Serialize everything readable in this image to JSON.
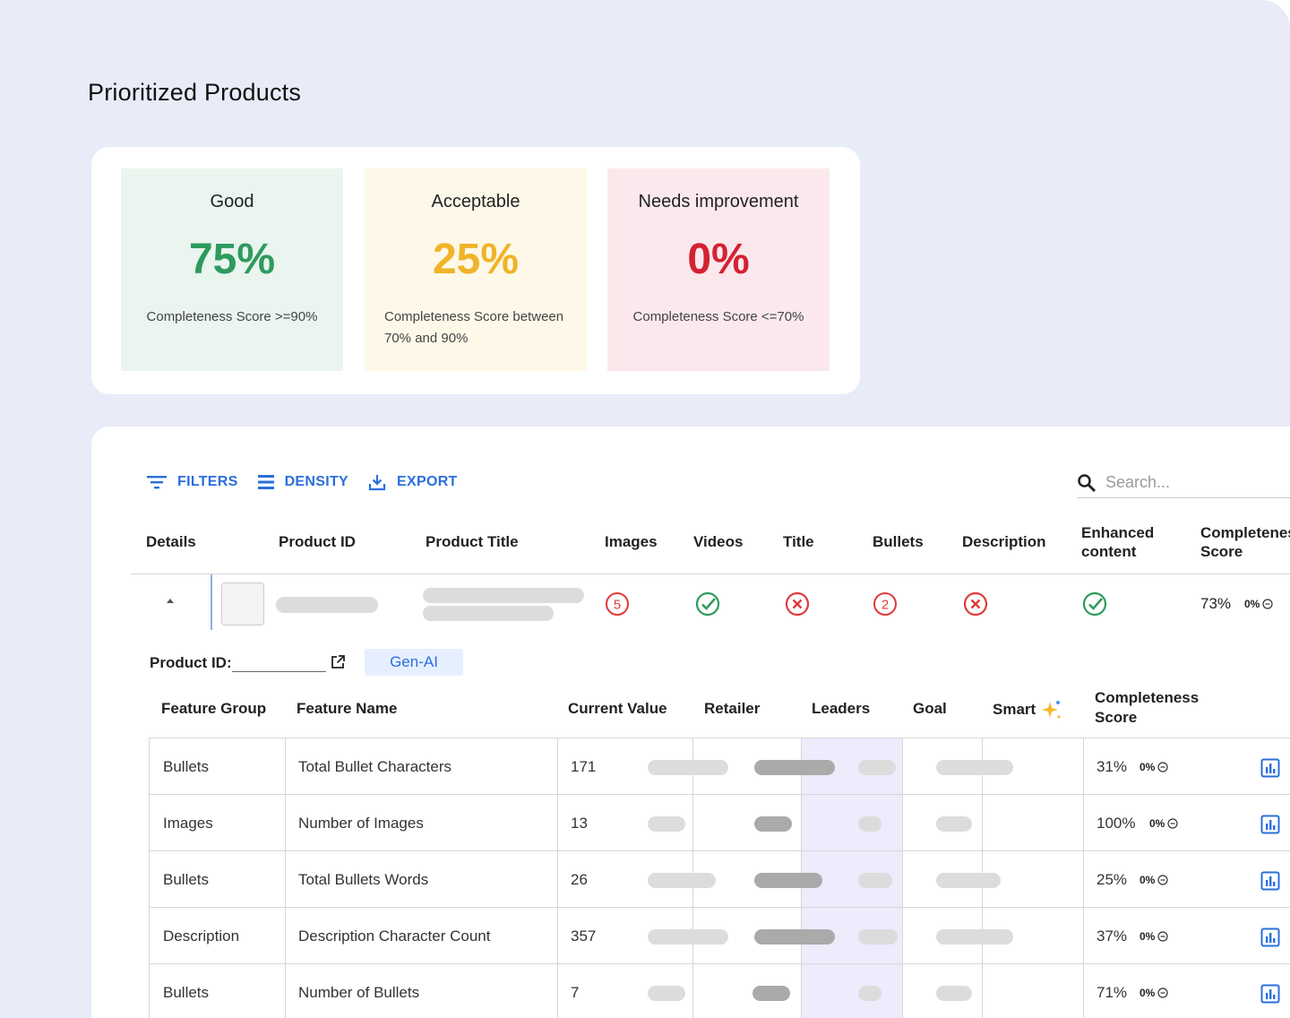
{
  "page": {
    "title": "Prioritized Products"
  },
  "summary": {
    "good": {
      "label": "Good",
      "value": "75%",
      "desc": "Completeness Score >=90%"
    },
    "acceptable": {
      "label": "Acceptable",
      "value": "25%",
      "desc": "Completeness Score between 70% and 90%"
    },
    "needs": {
      "label": "Needs improvement",
      "value": "0%",
      "desc": "Completeness Score <=70%"
    },
    "colors": {
      "good": "#2e9a5e",
      "acceptable": "#f0b429",
      "needs": "#d32232"
    }
  },
  "toolbar": {
    "filters": "FILTERS",
    "density": "DENSITY",
    "export": "EXPORT"
  },
  "search": {
    "placeholder": "Search..."
  },
  "columns": {
    "details": "Details",
    "product_id": "Product ID",
    "product_title": "Product Title",
    "images": "Images",
    "videos": "Videos",
    "title": "Title",
    "bullets": "Bullets",
    "description": "Description",
    "enhanced": [
      "Enhanced",
      "content"
    ],
    "completeness": [
      "Completeness",
      "Score"
    ]
  },
  "product_row": {
    "images": {
      "status": "count",
      "icon": "circled-number-icon",
      "value": "5"
    },
    "videos": {
      "status": "pass",
      "icon": "check-circle-icon"
    },
    "title": {
      "status": "fail",
      "icon": "x-circle-icon"
    },
    "bullets": {
      "status": "count",
      "icon": "circled-number-icon",
      "value": "2"
    },
    "description": {
      "status": "fail",
      "icon": "x-circle-icon"
    },
    "enhanced": {
      "status": "pass",
      "icon": "check-circle-icon"
    },
    "score": "73%",
    "delta": "0%"
  },
  "detail": {
    "product_id_label": "Product ID:",
    "genai_label": "Gen-AI",
    "columns": {
      "feature_group": "Feature Group",
      "feature_name": "Feature Name",
      "current_value": "Current Value",
      "retailer": "Retailer",
      "leaders": "Leaders",
      "goal": "Goal",
      "smart": "Smart",
      "completeness": [
        "Completeness",
        "Score"
      ]
    },
    "rows": [
      {
        "group": "Bullets",
        "name": "Total Bullet Characters",
        "value": "171",
        "score": "31%",
        "delta": "0%"
      },
      {
        "group": "Images",
        "name": "Number of Images",
        "value": "13",
        "score": "100%",
        "delta": "0%"
      },
      {
        "group": "Bullets",
        "name": "Total Bullets Words",
        "value": "26",
        "score": "25%",
        "delta": "0%"
      },
      {
        "group": "Description",
        "name": "Description Character Count",
        "value": "357",
        "score": "37%",
        "delta": "0%"
      },
      {
        "group": "Bullets",
        "name": "Number of Bullets",
        "value": "7",
        "score": "71%",
        "delta": "0%"
      }
    ]
  }
}
